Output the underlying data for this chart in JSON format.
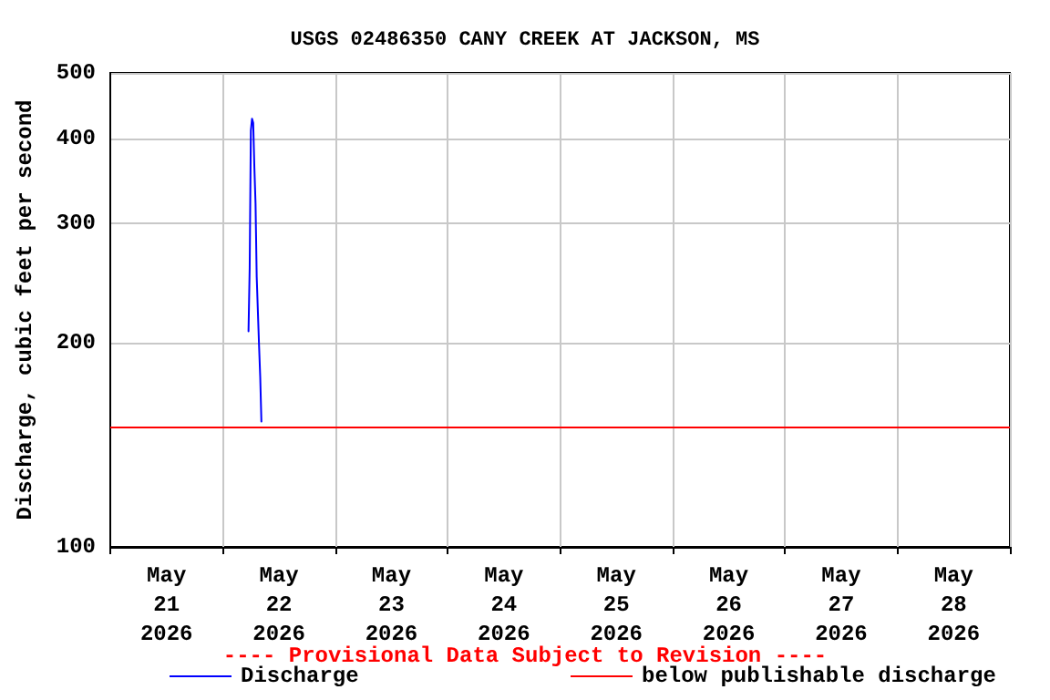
{
  "chart_data": {
    "type": "line",
    "title": "USGS 02486350 CANY CREEK AT JACKSON, MS",
    "ylabel": "Discharge, cubic feet per second",
    "annotations": [
      "---- Provisional Data Subject to Revision ----"
    ],
    "x": [
      "2026-05-22T05:30",
      "2026-05-22T05:45",
      "2026-05-22T06:00",
      "2026-05-22T06:15",
      "2026-05-22T06:30",
      "2026-05-22T06:45",
      "2026-05-22T07:00",
      "2026-05-22T07:15",
      "2026-05-22T07:45",
      "2026-05-22T08:00",
      "2026-05-22T08:15"
    ],
    "series": [
      {
        "name": "Discharge",
        "color": "#0000ff",
        "values": [
          208,
          258,
          411,
          428,
          422,
          363,
          321,
          250,
          198,
          178,
          153
        ]
      }
    ],
    "ref_lines": [
      {
        "axis": "y",
        "value": 150,
        "label": "below publishable discharge",
        "color": "#ff0000"
      }
    ],
    "xlim": [
      "2026-05-21T00:00",
      "2026-05-29T00:00"
    ],
    "xticks": [
      {
        "value": "2026-05-21T00:00",
        "label": null
      },
      {
        "value": "2026-05-21T12:00",
        "label": "May 21 2026"
      },
      {
        "value": "2026-05-22T00:00",
        "label": null
      },
      {
        "value": "2026-05-22T12:00",
        "label": "May 22 2026"
      },
      {
        "value": "2026-05-23T00:00",
        "label": null
      },
      {
        "value": "2026-05-23T12:00",
        "label": "May 23 2026"
      },
      {
        "value": "2026-05-24T00:00",
        "label": null
      },
      {
        "value": "2026-05-24T12:00",
        "label": "May 24 2026"
      },
      {
        "value": "2026-05-25T00:00",
        "label": null
      },
      {
        "value": "2026-05-25T12:00",
        "label": "May 25 2026"
      },
      {
        "value": "2026-05-26T00:00",
        "label": null
      },
      {
        "value": "2026-05-26T12:00",
        "label": "May 26 2026"
      },
      {
        "value": "2026-05-27T00:00",
        "label": null
      },
      {
        "value": "2026-05-27T12:00",
        "label": "May 27 2026"
      },
      {
        "value": "2026-05-28T00:00",
        "label": null
      },
      {
        "value": "2026-05-28T12:00",
        "label": "May 28 2026"
      },
      {
        "value": "2026-05-29T00:00",
        "label": null
      }
    ],
    "ylim": [
      100,
      500
    ],
    "yticks": [
      100,
      200,
      300,
      400,
      500
    ],
    "log": true,
    "grid": true,
    "legend": "bottom",
    "marker": "none",
    "line_style": "solid"
  }
}
